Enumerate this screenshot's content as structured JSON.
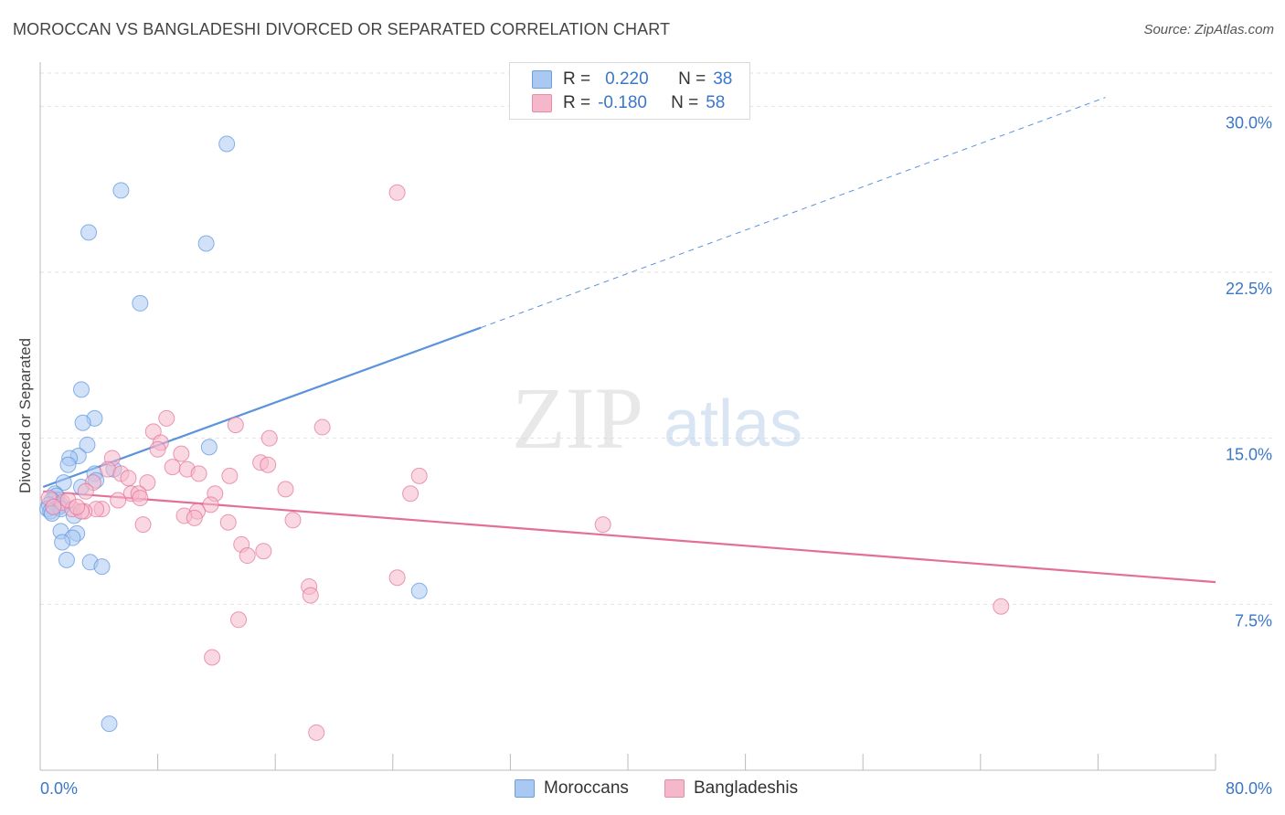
{
  "header": {
    "title": "MOROCCAN VS BANGLADESHI DIVORCED OR SEPARATED CORRELATION CHART",
    "source": "Source: ZipAtlas.com"
  },
  "watermark": {
    "zip": "ZIP",
    "atlas": "atlas"
  },
  "legend": {
    "rows": [
      {
        "r_label": "R =",
        "r_value": "0.220",
        "n_label": "N =",
        "n_value": "38",
        "color": "#a9c9f2"
      },
      {
        "r_label": "R =",
        "r_value": "-0.180",
        "n_label": "N =",
        "n_value": "58",
        "color": "#f5b8cb"
      }
    ]
  },
  "bottom_legend": [
    {
      "label": "Moroccans",
      "color": "#a9c9f2"
    },
    {
      "label": "Bangladeshis",
      "color": "#f5b8cb"
    }
  ],
  "chart_data": {
    "type": "scatter",
    "title": "MOROCCAN VS BANGLADESHI DIVORCED OR SEPARATED CORRELATION CHART",
    "xlabel": "",
    "ylabel": "Divorced or Separated",
    "xlim": [
      0,
      80
    ],
    "ylim": [
      0,
      31.5
    ],
    "x_tick_labels": [
      {
        "value": 0,
        "label": "0.0%"
      },
      {
        "value": 80,
        "label": "80.0%"
      }
    ],
    "y_tick_labels": [
      {
        "value": 7.5,
        "label": "7.5%"
      },
      {
        "value": 15,
        "label": "15.0%"
      },
      {
        "value": 22.5,
        "label": "22.5%"
      },
      {
        "value": 30,
        "label": "30.0%"
      }
    ],
    "grid": true,
    "series": [
      {
        "name": "Moroccans",
        "color": "#5b93dd",
        "fill": "#a9c9f2",
        "trend": {
          "x0": 0.2,
          "y0": 12.8,
          "x1": 30,
          "y1": 20.0,
          "dash_to_x": 72.5,
          "dash_to_y": 30.4
        },
        "points": [
          [
            12.7,
            28.3
          ],
          [
            5.5,
            26.2
          ],
          [
            3.3,
            24.3
          ],
          [
            11.3,
            23.8
          ],
          [
            6.8,
            21.1
          ],
          [
            2.8,
            17.2
          ],
          [
            3.7,
            15.9
          ],
          [
            2.9,
            15.7
          ],
          [
            11.5,
            14.6
          ],
          [
            3.2,
            14.7
          ],
          [
            2.6,
            14.2
          ],
          [
            2.0,
            14.1
          ],
          [
            1.9,
            13.8
          ],
          [
            3.7,
            13.4
          ],
          [
            5.0,
            13.6
          ],
          [
            3.8,
            13.1
          ],
          [
            1.6,
            13.0
          ],
          [
            2.8,
            12.8
          ],
          [
            1.0,
            12.5
          ],
          [
            1.1,
            12.4
          ],
          [
            0.8,
            12.2
          ],
          [
            0.6,
            12.0
          ],
          [
            1.4,
            12.0
          ],
          [
            1.3,
            11.9
          ],
          [
            0.5,
            11.8
          ],
          [
            0.7,
            11.7
          ],
          [
            1.4,
            11.8
          ],
          [
            0.8,
            11.6
          ],
          [
            2.3,
            11.5
          ],
          [
            1.4,
            10.8
          ],
          [
            2.5,
            10.7
          ],
          [
            2.2,
            10.5
          ],
          [
            1.5,
            10.3
          ],
          [
            1.8,
            9.5
          ],
          [
            3.4,
            9.4
          ],
          [
            4.2,
            9.2
          ],
          [
            25.8,
            8.1
          ],
          [
            4.7,
            2.1
          ]
        ]
      },
      {
        "name": "Bangladeshis",
        "color": "#e36f98",
        "fill": "#f5b8cb",
        "trend": {
          "x0": 0.2,
          "y0": 12.6,
          "x1": 80,
          "y1": 8.5
        },
        "points": [
          [
            24.3,
            26.1
          ],
          [
            8.6,
            15.9
          ],
          [
            13.3,
            15.6
          ],
          [
            19.2,
            15.5
          ],
          [
            7.7,
            15.3
          ],
          [
            15.6,
            15.0
          ],
          [
            8.2,
            14.8
          ],
          [
            8.0,
            14.5
          ],
          [
            9.6,
            14.3
          ],
          [
            4.9,
            14.1
          ],
          [
            15.0,
            13.9
          ],
          [
            15.5,
            13.8
          ],
          [
            9.0,
            13.7
          ],
          [
            10.0,
            13.6
          ],
          [
            4.6,
            13.6
          ],
          [
            5.5,
            13.4
          ],
          [
            10.8,
            13.4
          ],
          [
            25.8,
            13.3
          ],
          [
            6.0,
            13.2
          ],
          [
            3.6,
            13.0
          ],
          [
            7.3,
            13.0
          ],
          [
            16.7,
            12.7
          ],
          [
            3.1,
            12.6
          ],
          [
            6.2,
            12.5
          ],
          [
            6.7,
            12.5
          ],
          [
            11.9,
            12.5
          ],
          [
            25.2,
            12.5
          ],
          [
            6.8,
            12.3
          ],
          [
            5.3,
            12.2
          ],
          [
            1.5,
            12.1
          ],
          [
            11.6,
            12.0
          ],
          [
            2.2,
            11.8
          ],
          [
            4.2,
            11.8
          ],
          [
            3.8,
            11.8
          ],
          [
            3.0,
            11.7
          ],
          [
            2.8,
            11.7
          ],
          [
            10.7,
            11.7
          ],
          [
            9.8,
            11.5
          ],
          [
            10.5,
            11.4
          ],
          [
            17.2,
            11.3
          ],
          [
            12.8,
            11.2
          ],
          [
            38.3,
            11.1
          ],
          [
            7.0,
            11.1
          ],
          [
            13.7,
            10.2
          ],
          [
            15.2,
            9.9
          ],
          [
            14.1,
            9.7
          ],
          [
            24.3,
            8.7
          ],
          [
            18.3,
            8.3
          ],
          [
            18.4,
            7.9
          ],
          [
            65.4,
            7.4
          ],
          [
            13.5,
            6.8
          ],
          [
            11.7,
            5.1
          ],
          [
            18.8,
            1.7
          ],
          [
            0.6,
            12.3
          ],
          [
            0.9,
            11.9
          ],
          [
            1.9,
            12.2
          ],
          [
            12.9,
            13.3
          ],
          [
            2.5,
            11.9
          ]
        ]
      }
    ]
  }
}
